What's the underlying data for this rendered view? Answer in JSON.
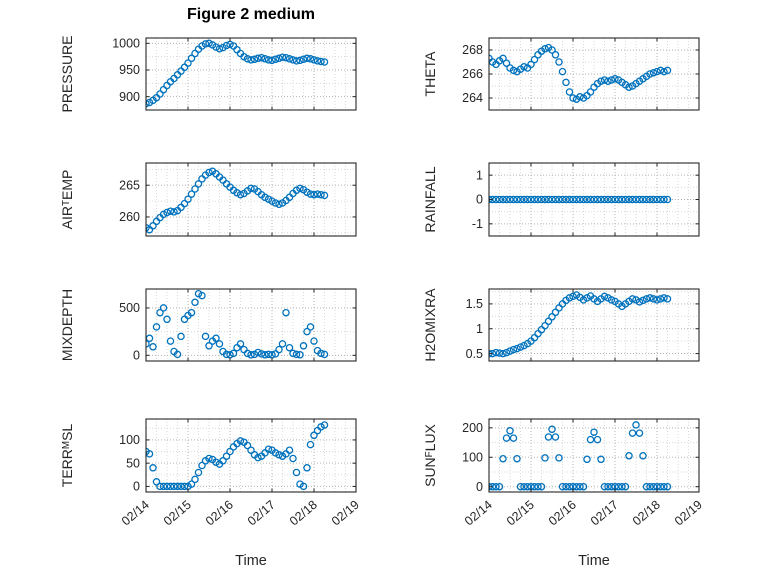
{
  "chart_data": {
    "type": "scatter",
    "title": "Figure 2 medium",
    "xlabel": "Time",
    "marker_color": "#0072BD",
    "marker_shape": "open-circle",
    "grid": "on",
    "x_tick_labels": [
      "02/14",
      "02/15",
      "02/16",
      "02/17",
      "02/18",
      "02/19"
    ],
    "x_tick_values_days": [
      0,
      1,
      2,
      3,
      4,
      5
    ],
    "xlim_days": [
      0,
      5
    ],
    "x_days": [
      0,
      0.083,
      0.167,
      0.25,
      0.333,
      0.417,
      0.5,
      0.583,
      0.667,
      0.75,
      0.833,
      0.917,
      1,
      1.083,
      1.167,
      1.25,
      1.333,
      1.417,
      1.5,
      1.583,
      1.667,
      1.75,
      1.833,
      1.917,
      2,
      2.083,
      2.167,
      2.25,
      2.333,
      2.417,
      2.5,
      2.583,
      2.667,
      2.75,
      2.833,
      2.917,
      3,
      3.083,
      3.167,
      3.25,
      3.333,
      3.417,
      3.5,
      3.583,
      3.667,
      3.75,
      3.833,
      3.917,
      4,
      4.083,
      4.167,
      4.25
    ],
    "subplots": [
      {
        "id": "pressure",
        "row": 1,
        "col": "left",
        "ylabel_pre": "PRESSURE",
        "ylabel_sub": "",
        "ylabel_post": "",
        "yticks": [
          900,
          950,
          1000
        ],
        "ylim": [
          875,
          1010
        ],
        "values": [
          887,
          889,
          893,
          898,
          905,
          913,
          921,
          928,
          934,
          941,
          948,
          955,
          963,
          972,
          981,
          989,
          995,
          999,
          1000,
          997,
          993,
          990,
          992,
          996,
          998,
          995,
          988,
          981,
          975,
          971,
          969,
          970,
          972,
          973,
          971,
          969,
          968,
          970,
          972,
          974,
          973,
          971,
          969,
          967,
          968,
          970,
          972,
          971,
          969,
          967,
          966,
          965
        ]
      },
      {
        "id": "theta",
        "row": 1,
        "col": "right",
        "ylabel_pre": "THETA",
        "ylabel_sub": "",
        "ylabel_post": "",
        "yticks": [
          264,
          266,
          268
        ],
        "ylim": [
          263,
          269
        ],
        "values": [
          267.3,
          267,
          266.8,
          267.1,
          267.3,
          266.9,
          266.5,
          266.3,
          266.2,
          266.4,
          266.6,
          266.5,
          266.8,
          267.2,
          267.6,
          267.9,
          268.1,
          268.2,
          268,
          267.6,
          267,
          266.2,
          265.3,
          264.5,
          264,
          263.9,
          264.1,
          264,
          264.2,
          264.5,
          264.9,
          265.2,
          265.4,
          265.5,
          265.4,
          265.5,
          265.6,
          265.5,
          265.3,
          265.1,
          264.9,
          265,
          265.2,
          265.4,
          265.6,
          265.8,
          266,
          266.1,
          266.2,
          266.3,
          266.2,
          266.3
        ]
      },
      {
        "id": "air-temp",
        "row": 2,
        "col": "left",
        "ylabel_pre": "AIR",
        "ylabel_sub": "T",
        "ylabel_post": "EMP",
        "yticks": [
          260,
          265
        ],
        "ylim": [
          257,
          268.5
        ],
        "values": [
          258.3,
          258,
          258.6,
          259.3,
          259.9,
          260.4,
          260.7,
          260.9,
          260.8,
          261,
          261.5,
          262.1,
          262.8,
          263.6,
          264.4,
          265.2,
          266,
          266.6,
          267,
          267.2,
          266.8,
          266.3,
          265.8,
          265.2,
          264.7,
          264.2,
          263.8,
          263.5,
          263.7,
          264.1,
          264.5,
          264.4,
          264,
          263.5,
          263.1,
          262.8,
          262.5,
          262.2,
          262,
          262.2,
          262.6,
          263.1,
          263.7,
          264.2,
          264.5,
          264.3,
          263.9,
          263.6,
          263.5,
          263.6,
          263.5,
          263.4
        ]
      },
      {
        "id": "rainfall",
        "row": 2,
        "col": "right",
        "ylabel_pre": "RAINFALL",
        "ylabel_sub": "",
        "ylabel_post": "",
        "yticks": [
          -1,
          0,
          1
        ],
        "ylim": [
          -1.5,
          1.5
        ],
        "values": [
          0,
          0,
          0,
          0,
          0,
          0,
          0,
          0,
          0,
          0,
          0,
          0,
          0,
          0,
          0,
          0,
          0,
          0,
          0,
          0,
          0,
          0,
          0,
          0,
          0,
          0,
          0,
          0,
          0,
          0,
          0,
          0,
          0,
          0,
          0,
          0,
          0,
          0,
          0,
          0,
          0,
          0,
          0,
          0,
          0,
          0,
          0,
          0,
          0,
          0,
          0,
          0
        ]
      },
      {
        "id": "mixdepth",
        "row": 3,
        "col": "left",
        "ylabel_pre": "MIXDEPTH",
        "ylabel_sub": "",
        "ylabel_post": "",
        "yticks": [
          0,
          500
        ],
        "ylim": [
          -60,
          700
        ],
        "values": [
          120,
          180,
          90,
          300,
          450,
          500,
          380,
          150,
          40,
          10,
          200,
          380,
          420,
          450,
          560,
          650,
          630,
          200,
          100,
          150,
          180,
          120,
          40,
          10,
          5,
          20,
          80,
          120,
          60,
          20,
          5,
          10,
          30,
          15,
          5,
          10,
          5,
          15,
          60,
          120,
          450,
          80,
          20,
          10,
          5,
          100,
          250,
          300,
          150,
          50,
          20,
          10
        ]
      },
      {
        "id": "h2omixra",
        "row": 3,
        "col": "right",
        "ylabel_pre": "H2OMIXRA",
        "ylabel_sub": "",
        "ylabel_post": "",
        "yticks": [
          0.5,
          1,
          1.5
        ],
        "ylim": [
          0.35,
          1.8
        ],
        "values": [
          0.5,
          0.5,
          0.52,
          0.51,
          0.5,
          0.52,
          0.55,
          0.58,
          0.6,
          0.63,
          0.66,
          0.7,
          0.75,
          0.82,
          0.9,
          0.98,
          1.06,
          1.15,
          1.24,
          1.33,
          1.42,
          1.5,
          1.57,
          1.62,
          1.65,
          1.68,
          1.63,
          1.58,
          1.62,
          1.66,
          1.6,
          1.55,
          1.6,
          1.65,
          1.62,
          1.58,
          1.55,
          1.5,
          1.45,
          1.5,
          1.55,
          1.6,
          1.58,
          1.54,
          1.57,
          1.6,
          1.62,
          1.6,
          1.58,
          1.6,
          1.62,
          1.6
        ]
      },
      {
        "id": "terr-msl",
        "row": 4,
        "col": "left",
        "ylabel_pre": "TERR",
        "ylabel_sub": "M",
        "ylabel_post": "SL",
        "yticks": [
          0,
          50,
          100
        ],
        "ylim": [
          -12,
          145
        ],
        "values": [
          75,
          70,
          40,
          10,
          0,
          0,
          0,
          0,
          0,
          0,
          0,
          0,
          0,
          5,
          15,
          30,
          45,
          55,
          60,
          58,
          52,
          48,
          55,
          65,
          75,
          85,
          92,
          98,
          95,
          88,
          78,
          68,
          62,
          65,
          72,
          80,
          78,
          72,
          68,
          65,
          70,
          78,
          60,
          30,
          5,
          0,
          40,
          90,
          110,
          120,
          128,
          132
        ]
      },
      {
        "id": "sun-flux",
        "row": 4,
        "col": "right",
        "ylabel_pre": "SUN",
        "ylabel_sub": "F",
        "ylabel_post": "LUX",
        "yticks": [
          0,
          100,
          200
        ],
        "ylim": [
          -18,
          230
        ],
        "values": [
          0,
          0,
          0,
          0,
          95,
          165,
          190,
          165,
          95,
          0,
          0,
          0,
          0,
          0,
          0,
          0,
          98,
          169,
          195,
          169,
          98,
          0,
          0,
          0,
          0,
          0,
          0,
          0,
          93,
          160,
          185,
          160,
          93,
          0,
          0,
          0,
          0,
          0,
          0,
          0,
          105,
          182,
          210,
          182,
          105,
          0,
          0,
          0,
          0,
          0,
          0,
          0
        ]
      }
    ]
  }
}
